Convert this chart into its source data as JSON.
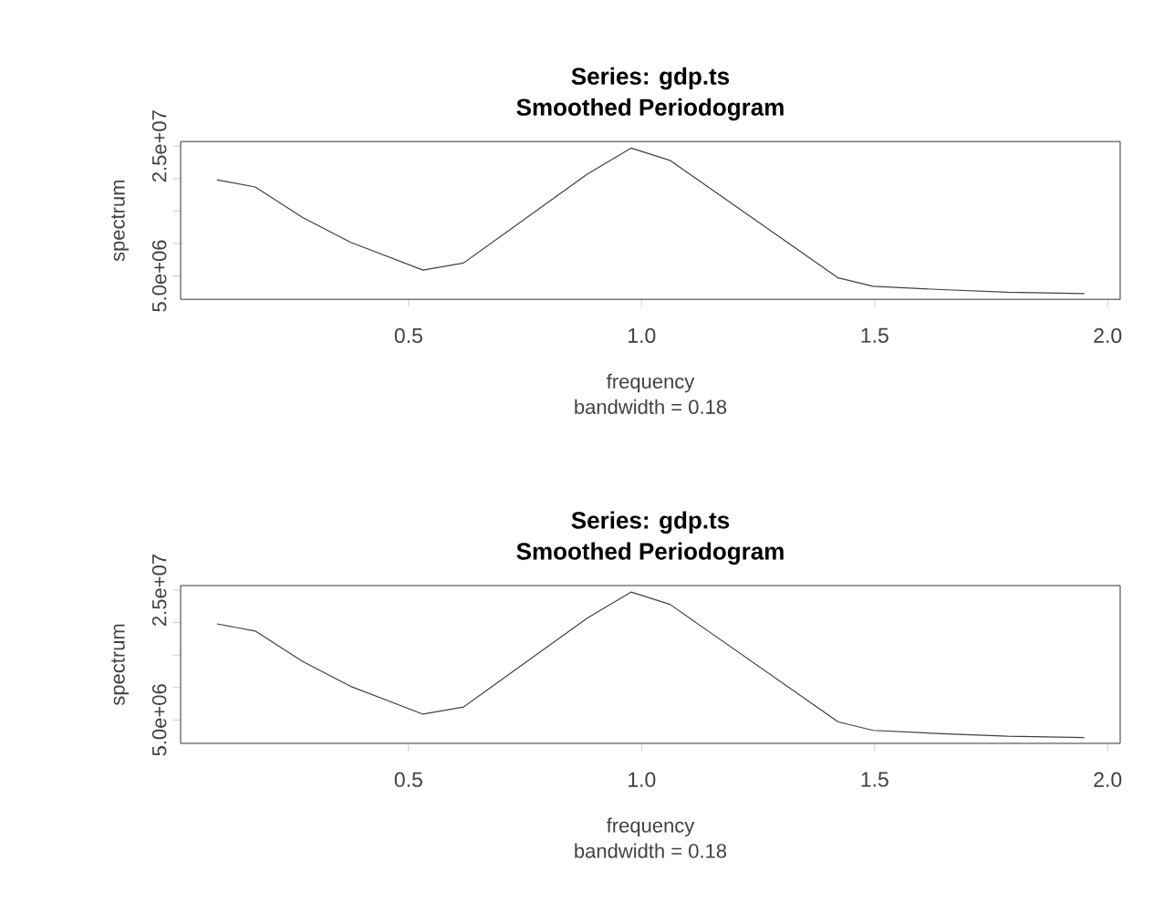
{
  "chart_data": [
    {
      "type": "line",
      "title": "Series: gdp.ts",
      "subtitle": "Smoothed Periodogram",
      "xlabel": "frequency",
      "ylabel": "spectrum",
      "annotations": [
        "bandwidth = 0.18"
      ],
      "x": [
        0.089,
        0.171,
        0.273,
        0.375,
        0.531,
        0.618,
        0.884,
        0.978,
        1.061,
        1.422,
        1.497,
        1.644,
        1.785,
        1.95
      ],
      "values": [
        19800000,
        18700000,
        14000000,
        10200000,
        5900000,
        7000000,
        20700000,
        24700000,
        22800000,
        4700000,
        3400000,
        2900000,
        2500000,
        2300000
      ],
      "color": "#404040",
      "xlim": [
        0.011,
        2.027
      ],
      "ylim": [
        1400000,
        25700000
      ],
      "xticks": [
        {
          "value": 0.5,
          "label": "0.5"
        },
        {
          "value": 1.0,
          "label": "1.0"
        },
        {
          "value": 1.5,
          "label": "1.5"
        },
        {
          "value": 2.0,
          "label": "2.0"
        }
      ],
      "yticks": [
        {
          "value": 5000000,
          "label": "5.0e+06"
        },
        {
          "value": 10000000,
          "label": null
        },
        {
          "value": 15000000,
          "label": null
        },
        {
          "value": 20000000,
          "label": null
        },
        {
          "value": 25000000,
          "label": "2.5e+07"
        }
      ]
    },
    {
      "type": "line",
      "title": "Series: gdp.ts",
      "subtitle": "Smoothed Periodogram",
      "xlabel": "frequency",
      "ylabel": "spectrum",
      "annotations": [
        "bandwidth = 0.18"
      ],
      "x": [
        0.089,
        0.171,
        0.273,
        0.375,
        0.531,
        0.618,
        0.884,
        0.978,
        1.061,
        1.422,
        1.497,
        1.644,
        1.785,
        1.95
      ],
      "values": [
        19800000,
        18700000,
        14000000,
        10200000,
        5900000,
        7000000,
        20700000,
        24700000,
        22800000,
        4700000,
        3400000,
        2900000,
        2500000,
        2300000
      ],
      "color": "#404040",
      "xlim": [
        0.011,
        2.027
      ],
      "ylim": [
        1400000,
        25700000
      ],
      "xticks": [
        {
          "value": 0.5,
          "label": "0.5"
        },
        {
          "value": 1.0,
          "label": "1.0"
        },
        {
          "value": 1.5,
          "label": "1.5"
        },
        {
          "value": 2.0,
          "label": "2.0"
        }
      ],
      "yticks": [
        {
          "value": 5000000,
          "label": "5.0e+06"
        },
        {
          "value": 10000000,
          "label": null
        },
        {
          "value": 15000000,
          "label": null
        },
        {
          "value": 20000000,
          "label": null
        },
        {
          "value": 25000000,
          "label": "2.5e+07"
        }
      ]
    }
  ]
}
